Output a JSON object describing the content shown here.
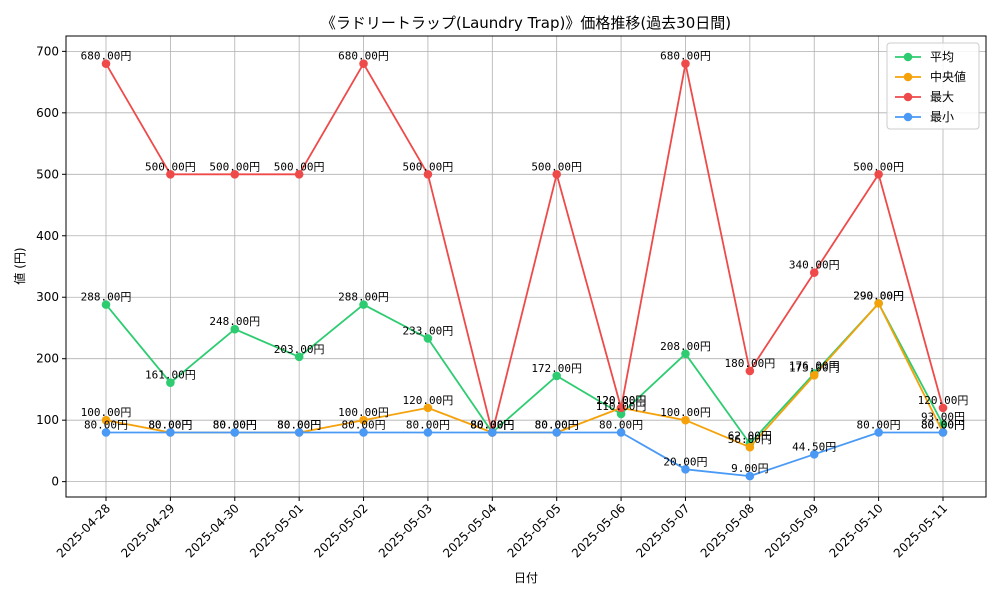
{
  "chart_data": {
    "type": "line",
    "title": "《ラドリートラップ(Laundry Trap)》価格推移(過去30日間)",
    "xlabel": "日付",
    "ylabel": "値 (円)",
    "ylim": [
      -25,
      725
    ],
    "y_ticks": [
      0,
      100,
      200,
      300,
      400,
      500,
      600,
      700
    ],
    "grid": true,
    "legend_position": "top-right",
    "categories": [
      "2025-04-28",
      "2025-04-29",
      "2025-04-30",
      "2025-05-01",
      "2025-05-02",
      "2025-05-03",
      "2025-05-04",
      "2025-05-05",
      "2025-05-06",
      "2025-05-07",
      "2025-05-08",
      "2025-05-09",
      "2025-05-10",
      "2025-05-11"
    ],
    "series": [
      {
        "name": "平均",
        "color": "#2ecc71",
        "values": [
          288,
          161,
          248,
          203,
          288,
          233,
          80,
          172,
          110,
          208,
          62,
          176,
          290,
          93
        ],
        "labels": [
          "288.00円",
          "161.00円",
          "248.00円",
          "203.00円",
          "288.00円",
          "233.00円",
          "80.00円",
          "172.00円",
          "110.00円",
          "208.00円",
          "62.00円",
          "176.00円",
          "290.00円",
          "93.00円"
        ]
      },
      {
        "name": "中央値",
        "color": "#f5a20a",
        "values": [
          100,
          80,
          80,
          80,
          100,
          120,
          80,
          80,
          120,
          100,
          56,
          173,
          290,
          80
        ],
        "labels": [
          "100.00円",
          "80.00円",
          "80.00円",
          "80.00円",
          "100.00円",
          "120.00円",
          "80.00円",
          "80.00円",
          "120.00円",
          "100.00円",
          "56.00円",
          "173.00円",
          "290.00円",
          "80.00円"
        ]
      },
      {
        "name": "最大",
        "color": "#ef4a4a",
        "values": [
          680,
          500,
          500,
          500,
          680,
          500,
          80,
          500,
          120,
          680,
          180,
          340,
          500,
          120
        ],
        "labels": [
          "680.00円",
          "500.00円",
          "500.00円",
          "500.00円",
          "680.00円",
          "500.00円",
          "80.00円",
          "500.00円",
          "120.00円",
          "680.00円",
          "180.00円",
          "340.00円",
          "500.00円",
          "120.00円"
        ]
      },
      {
        "name": "最小",
        "color": "#4a9af5",
        "values": [
          80,
          80,
          80,
          80,
          80,
          80,
          80,
          80,
          80,
          20,
          9,
          44.5,
          80,
          80
        ],
        "labels": [
          "80.00円",
          "80.00円",
          "80.00円",
          "80.00円",
          "80.00円",
          "80.00円",
          "80.00円",
          "80.00円",
          "80.00円",
          "20.00円",
          "9.00円",
          "44.50円",
          "80.00円",
          "80.00円"
        ]
      }
    ]
  }
}
